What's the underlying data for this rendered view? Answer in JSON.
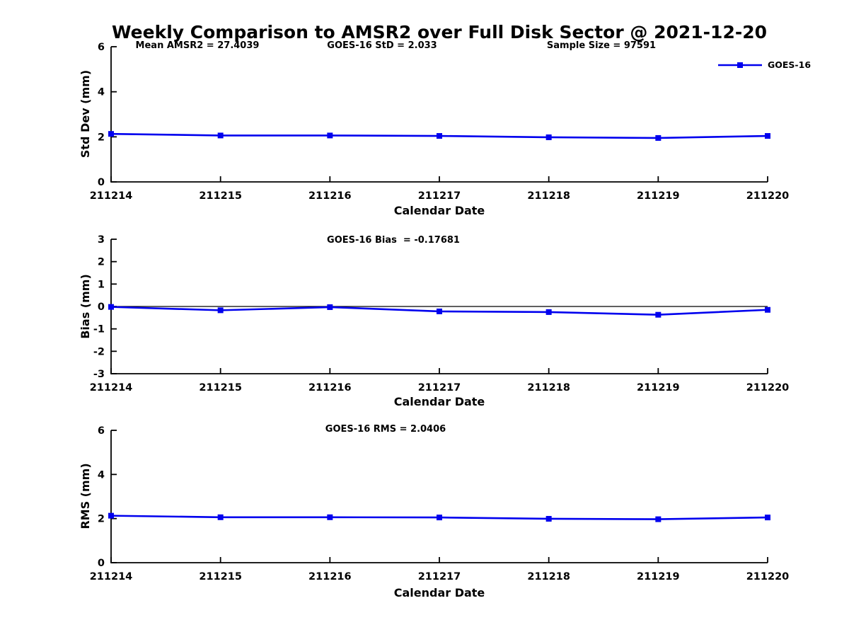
{
  "title": "Weekly Comparison to AMSR2 over Full Disk Sector @ 2021-12-20",
  "legend": {
    "label": "GOES-16",
    "color": "#0000EE"
  },
  "colors": {
    "series": "#0000EE",
    "axis": "#000000",
    "text": "#000000",
    "background": "#ffffff"
  },
  "chart_data": [
    {
      "type": "line",
      "name": "stddev",
      "annotations": [
        "Mean AMSR2 = 27.4039",
        "GOES-16 StD = 2.033",
        "Sample Size = 97591"
      ],
      "xlabel": "Calendar Date",
      "ylabel": "Std Dev (mm)",
      "categories": [
        "211214",
        "211215",
        "211216",
        "211217",
        "211218",
        "211219",
        "211220"
      ],
      "series": [
        {
          "name": "GOES-16",
          "values": [
            2.13,
            2.06,
            2.06,
            2.04,
            1.98,
            1.95,
            2.04
          ]
        }
      ],
      "ylim": [
        0,
        6
      ],
      "yticks": [
        0,
        2,
        4,
        6
      ],
      "grid": false,
      "zero_line": false,
      "legend_position": "top-right",
      "marker": "square"
    },
    {
      "type": "line",
      "name": "bias",
      "annotations": [
        "GOES-16 Bias  = -0.17681"
      ],
      "xlabel": "Calendar Date",
      "ylabel": "Bias (mm)",
      "categories": [
        "211214",
        "211215",
        "211216",
        "211217",
        "211218",
        "211219",
        "211220"
      ],
      "series": [
        {
          "name": "GOES-16",
          "values": [
            -0.02,
            -0.17,
            -0.03,
            -0.22,
            -0.25,
            -0.37,
            -0.15
          ]
        }
      ],
      "ylim": [
        -3,
        3
      ],
      "yticks": [
        3,
        2,
        1,
        0,
        -1,
        -2,
        -3
      ],
      "grid": false,
      "zero_line": true,
      "legend_position": "none",
      "marker": "square"
    },
    {
      "type": "line",
      "name": "rms",
      "annotations": [
        "GOES-16 RMS = 2.0406"
      ],
      "xlabel": "Calendar Date",
      "ylabel": "RMS (mm)",
      "categories": [
        "211214",
        "211215",
        "211216",
        "211217",
        "211218",
        "211219",
        "211220"
      ],
      "series": [
        {
          "name": "GOES-16",
          "values": [
            2.13,
            2.06,
            2.06,
            2.05,
            1.99,
            1.97,
            2.05
          ]
        }
      ],
      "ylim": [
        0,
        6
      ],
      "yticks": [
        0,
        2,
        4,
        6
      ],
      "grid": false,
      "zero_line": false,
      "legend_position": "none",
      "marker": "square"
    }
  ]
}
